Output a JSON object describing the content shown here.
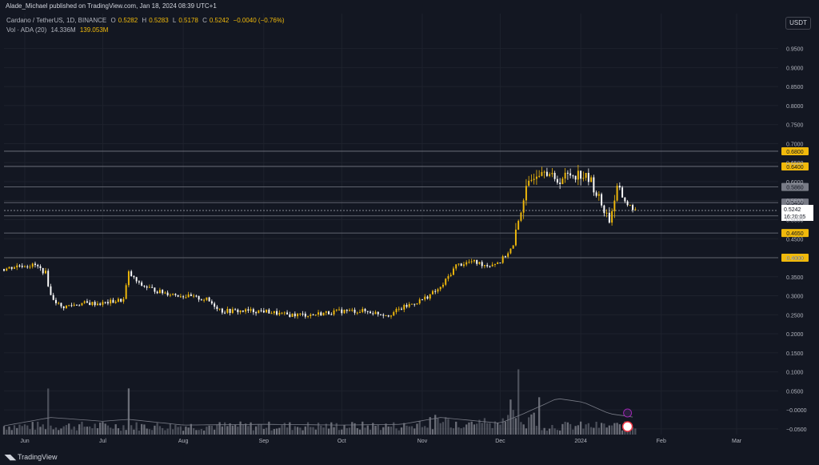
{
  "header": {
    "publish_line": "Alade_Michael published on TradingView.com, Jan 18, 2024 08:39 UTC+1",
    "symbol": "Cardano / TetherUS, 1D, BINANCE",
    "o_label": "O",
    "o_val": "0.5282",
    "h_label": "H",
    "h_val": "0.5283",
    "l_label": "L",
    "l_val": "0.5178",
    "c_label": "C",
    "c_val": "0.5242",
    "change": "−0.0040 (−0.76%)",
    "vol_label": "Vol · ADA (20)",
    "vol_val1": "14.336M",
    "vol_val2": "139.053M",
    "currency": "USDT"
  },
  "footer": {
    "brand": "TradingView"
  },
  "chart_data": {
    "type": "line",
    "subtype": "candlestick-with-volume",
    "y_ticks": [
      "0.9500",
      "0.9000",
      "0.8500",
      "0.8000",
      "0.7500",
      "0.7000",
      "0.6500",
      "0.6000",
      "0.5500",
      "0.5000",
      "0.4500",
      "0.4000",
      "0.3500",
      "0.3000",
      "0.2500",
      "0.2000",
      "0.1500",
      "0.1000",
      "0.0500",
      "−0.0000",
      "−0.0500"
    ],
    "y_tick_values": [
      0.95,
      0.9,
      0.85,
      0.8,
      0.75,
      0.7,
      0.65,
      0.6,
      0.55,
      0.5,
      0.45,
      0.4,
      0.35,
      0.3,
      0.25,
      0.2,
      0.15,
      0.1,
      0.05,
      0,
      -0.05
    ],
    "ylim": [
      -0.065,
      0.985
    ],
    "x_ticks": [
      "Jun",
      "Jul",
      "Aug",
      "Sep",
      "Oct",
      "Nov",
      "Dec",
      "2024",
      "Feb",
      "Mar"
    ],
    "x_tick_days": [
      0,
      30,
      61,
      92,
      122,
      153,
      183,
      214,
      245,
      274
    ],
    "xlim_days": [
      -8,
      290
    ],
    "level_lines": [
      {
        "label": "0.6800",
        "value": 0.68,
        "color": "#f0b90b"
      },
      {
        "label": "0.6400",
        "value": 0.64,
        "color": "#f0b90b"
      },
      {
        "label": "0.5860",
        "value": 0.586,
        "color": "#787b86"
      },
      {
        "label": "0.5450",
        "value": 0.545,
        "color": "#787b86"
      },
      {
        "label": "0.5100",
        "value": 0.51,
        "color": "#f0b90b"
      },
      {
        "label": "0.4650",
        "value": 0.465,
        "color": "#f0b90b"
      },
      {
        "label": "0.4000",
        "value": 0.4,
        "color": "#f0b90b"
      }
    ],
    "last_price": {
      "label": "0.5242",
      "value": 0.5242,
      "countdown": "16:20:05"
    },
    "price_path": [
      {
        "day": -8,
        "price": 0.37
      },
      {
        "day": -2,
        "price": 0.38
      },
      {
        "day": 4,
        "price": 0.38
      },
      {
        "day": 8,
        "price": 0.36
      },
      {
        "day": 10,
        "price": 0.3
      },
      {
        "day": 14,
        "price": 0.27
      },
      {
        "day": 22,
        "price": 0.28
      },
      {
        "day": 30,
        "price": 0.28
      },
      {
        "day": 38,
        "price": 0.29
      },
      {
        "day": 40,
        "price": 0.36
      },
      {
        "day": 44,
        "price": 0.33
      },
      {
        "day": 52,
        "price": 0.31
      },
      {
        "day": 61,
        "price": 0.3
      },
      {
        "day": 70,
        "price": 0.29
      },
      {
        "day": 76,
        "price": 0.26
      },
      {
        "day": 92,
        "price": 0.26
      },
      {
        "day": 100,
        "price": 0.25
      },
      {
        "day": 110,
        "price": 0.25
      },
      {
        "day": 122,
        "price": 0.26
      },
      {
        "day": 130,
        "price": 0.26
      },
      {
        "day": 140,
        "price": 0.25
      },
      {
        "day": 146,
        "price": 0.27
      },
      {
        "day": 153,
        "price": 0.29
      },
      {
        "day": 160,
        "price": 0.32
      },
      {
        "day": 166,
        "price": 0.38
      },
      {
        "day": 172,
        "price": 0.39
      },
      {
        "day": 178,
        "price": 0.38
      },
      {
        "day": 183,
        "price": 0.39
      },
      {
        "day": 188,
        "price": 0.43
      },
      {
        "day": 192,
        "price": 0.56
      },
      {
        "day": 196,
        "price": 0.62
      },
      {
        "day": 200,
        "price": 0.64
      },
      {
        "day": 204,
        "price": 0.6
      },
      {
        "day": 210,
        "price": 0.62
      },
      {
        "day": 214,
        "price": 0.62
      },
      {
        "day": 218,
        "price": 0.6
      },
      {
        "day": 222,
        "price": 0.54
      },
      {
        "day": 225,
        "price": 0.5
      },
      {
        "day": 228,
        "price": 0.58
      },
      {
        "day": 232,
        "price": 0.54
      },
      {
        "day": 235,
        "price": 0.525
      }
    ],
    "volume_path": [
      {
        "day": -8,
        "vol": -0.042
      },
      {
        "day": 10,
        "vol": -0.02
      },
      {
        "day": 30,
        "vol": -0.03
      },
      {
        "day": 40,
        "vol": -0.025
      },
      {
        "day": 61,
        "vol": -0.04
      },
      {
        "day": 92,
        "vol": -0.038
      },
      {
        "day": 122,
        "vol": -0.04
      },
      {
        "day": 145,
        "vol": -0.038
      },
      {
        "day": 160,
        "vol": -0.02
      },
      {
        "day": 183,
        "vol": -0.035
      },
      {
        "day": 192,
        "vol": -0.01
      },
      {
        "day": 205,
        "vol": 0.03
      },
      {
        "day": 215,
        "vol": 0.02
      },
      {
        "day": 225,
        "vol": -0.01
      },
      {
        "day": 235,
        "vol": -0.02
      }
    ]
  }
}
